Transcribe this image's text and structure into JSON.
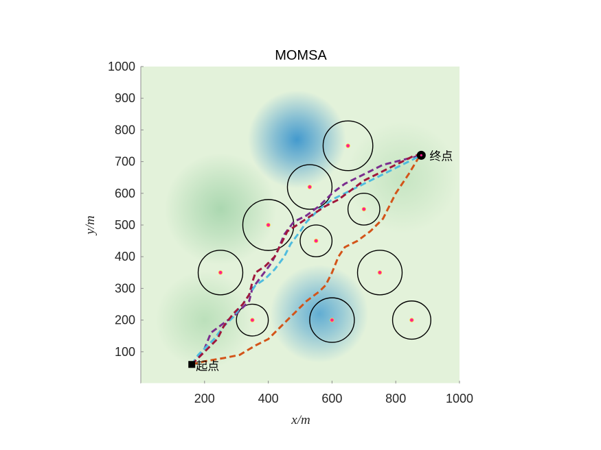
{
  "chart_data": {
    "type": "scatter",
    "title": "MOMSA",
    "xlabel": "x/m",
    "ylabel": "y/m",
    "xlim": [
      0,
      1000
    ],
    "ylim": [
      0,
      1000
    ],
    "xticks": [
      "200",
      "400",
      "600",
      "800",
      "1000"
    ],
    "yticks": [
      "100",
      "200",
      "300",
      "400",
      "500",
      "600",
      "700",
      "800",
      "900",
      "1000"
    ],
    "grid": false,
    "background": {
      "type": "terrain-heatmap",
      "base_color": "#e3f2da",
      "peaks": [
        {
          "x": 490,
          "y": 770,
          "spread": 70,
          "color": "#3b95cd"
        },
        {
          "x": 560,
          "y": 220,
          "spread": 70,
          "color": "#5aa9d2"
        },
        {
          "x": 250,
          "y": 550,
          "spread": 80,
          "color": "#a8d6ae"
        },
        {
          "x": 200,
          "y": 200,
          "spread": 70,
          "color": "#b9dfb9"
        },
        {
          "x": 820,
          "y": 650,
          "spread": 80,
          "color": "#c4e4c1"
        }
      ]
    },
    "threats": [
      {
        "x": 650,
        "y": 750,
        "r": 78
      },
      {
        "x": 530,
        "y": 620,
        "r": 70
      },
      {
        "x": 700,
        "y": 550,
        "r": 50
      },
      {
        "x": 400,
        "y": 500,
        "r": 80
      },
      {
        "x": 550,
        "y": 450,
        "r": 50
      },
      {
        "x": 250,
        "y": 350,
        "r": 70
      },
      {
        "x": 750,
        "y": 350,
        "r": 70
      },
      {
        "x": 350,
        "y": 200,
        "r": 50
      },
      {
        "x": 600,
        "y": 200,
        "r": 70
      },
      {
        "x": 850,
        "y": 200,
        "r": 60
      }
    ],
    "threat_center_color": "#ff1e8e",
    "start": {
      "x": 160,
      "y": 60,
      "label": "起点"
    },
    "end": {
      "x": 880,
      "y": 720,
      "label": "终点"
    },
    "series": [
      {
        "color": "#d35419",
        "points": [
          [
            160,
            60
          ],
          [
            200,
            70
          ],
          [
            260,
            80
          ],
          [
            310,
            90
          ],
          [
            360,
            120
          ],
          [
            400,
            140
          ],
          [
            450,
            190
          ],
          [
            480,
            220
          ],
          [
            520,
            260
          ],
          [
            560,
            290
          ],
          [
            580,
            310
          ],
          [
            600,
            350
          ],
          [
            620,
            400
          ],
          [
            640,
            430
          ],
          [
            680,
            450
          ],
          [
            720,
            480
          ],
          [
            760,
            520
          ],
          [
            800,
            600
          ],
          [
            840,
            660
          ],
          [
            870,
            710
          ],
          [
            880,
            720
          ]
        ]
      },
      {
        "color": "#7b2d8e",
        "points": [
          [
            160,
            60
          ],
          [
            180,
            80
          ],
          [
            200,
            110
          ],
          [
            220,
            160
          ],
          [
            260,
            190
          ],
          [
            300,
            220
          ],
          [
            340,
            260
          ],
          [
            350,
            300
          ],
          [
            380,
            340
          ],
          [
            410,
            380
          ],
          [
            430,
            420
          ],
          [
            450,
            470
          ],
          [
            480,
            510
          ],
          [
            520,
            530
          ],
          [
            560,
            560
          ],
          [
            600,
            600
          ],
          [
            640,
            630
          ],
          [
            680,
            650
          ],
          [
            720,
            670
          ],
          [
            760,
            690
          ],
          [
            800,
            700
          ],
          [
            840,
            710
          ],
          [
            880,
            720
          ]
        ]
      },
      {
        "color": "#4fbcde",
        "points": [
          [
            160,
            60
          ],
          [
            180,
            90
          ],
          [
            200,
            110
          ],
          [
            230,
            140
          ],
          [
            260,
            180
          ],
          [
            290,
            210
          ],
          [
            320,
            250
          ],
          [
            340,
            280
          ],
          [
            360,
            310
          ],
          [
            390,
            330
          ],
          [
            420,
            360
          ],
          [
            450,
            400
          ],
          [
            470,
            440
          ],
          [
            500,
            480
          ],
          [
            520,
            510
          ],
          [
            560,
            550
          ],
          [
            600,
            580
          ],
          [
            640,
            600
          ],
          [
            680,
            620
          ],
          [
            720,
            640
          ],
          [
            760,
            660
          ],
          [
            800,
            680
          ],
          [
            840,
            700
          ],
          [
            880,
            720
          ]
        ]
      },
      {
        "color": "#a0173b",
        "points": [
          [
            160,
            60
          ],
          [
            180,
            80
          ],
          [
            200,
            100
          ],
          [
            240,
            140
          ],
          [
            260,
            180
          ],
          [
            290,
            220
          ],
          [
            320,
            250
          ],
          [
            340,
            280
          ],
          [
            350,
            320
          ],
          [
            360,
            350
          ],
          [
            390,
            370
          ],
          [
            420,
            400
          ],
          [
            440,
            440
          ],
          [
            460,
            480
          ],
          [
            490,
            500
          ],
          [
            520,
            520
          ],
          [
            550,
            540
          ],
          [
            580,
            560
          ],
          [
            620,
            580
          ],
          [
            660,
            610
          ],
          [
            700,
            640
          ],
          [
            740,
            660
          ],
          [
            780,
            680
          ],
          [
            820,
            700
          ],
          [
            860,
            720
          ],
          [
            880,
            720
          ]
        ]
      }
    ]
  }
}
